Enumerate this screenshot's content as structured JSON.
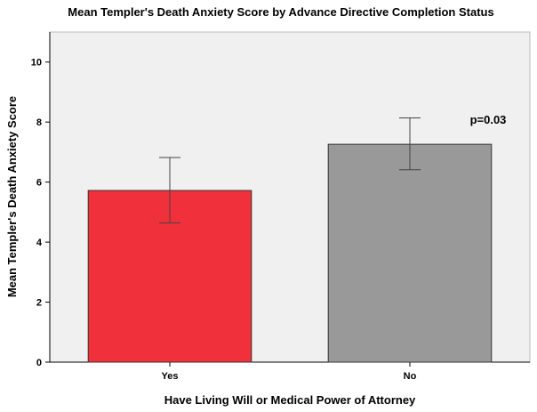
{
  "chart_data": {
    "type": "bar",
    "title": "Mean Templer's Death Anxiety Score by Advance Directive Completion Status",
    "xlabel": "Have Living Will or Medical Power of Attorney",
    "ylabel": "Mean Templer's Death Anxiety Score",
    "categories": [
      "Yes",
      "No"
    ],
    "values": [
      5.72,
      7.26
    ],
    "error_low": [
      4.64,
      6.41
    ],
    "error_high": [
      6.82,
      8.14
    ],
    "ylim": [
      0,
      11
    ],
    "yticks": [
      "0",
      "2",
      "4",
      "6",
      "8",
      "10"
    ],
    "colors": [
      "#f0303a",
      "#999999"
    ],
    "annotation": "p=0.03",
    "background": "#f0f0f0"
  }
}
